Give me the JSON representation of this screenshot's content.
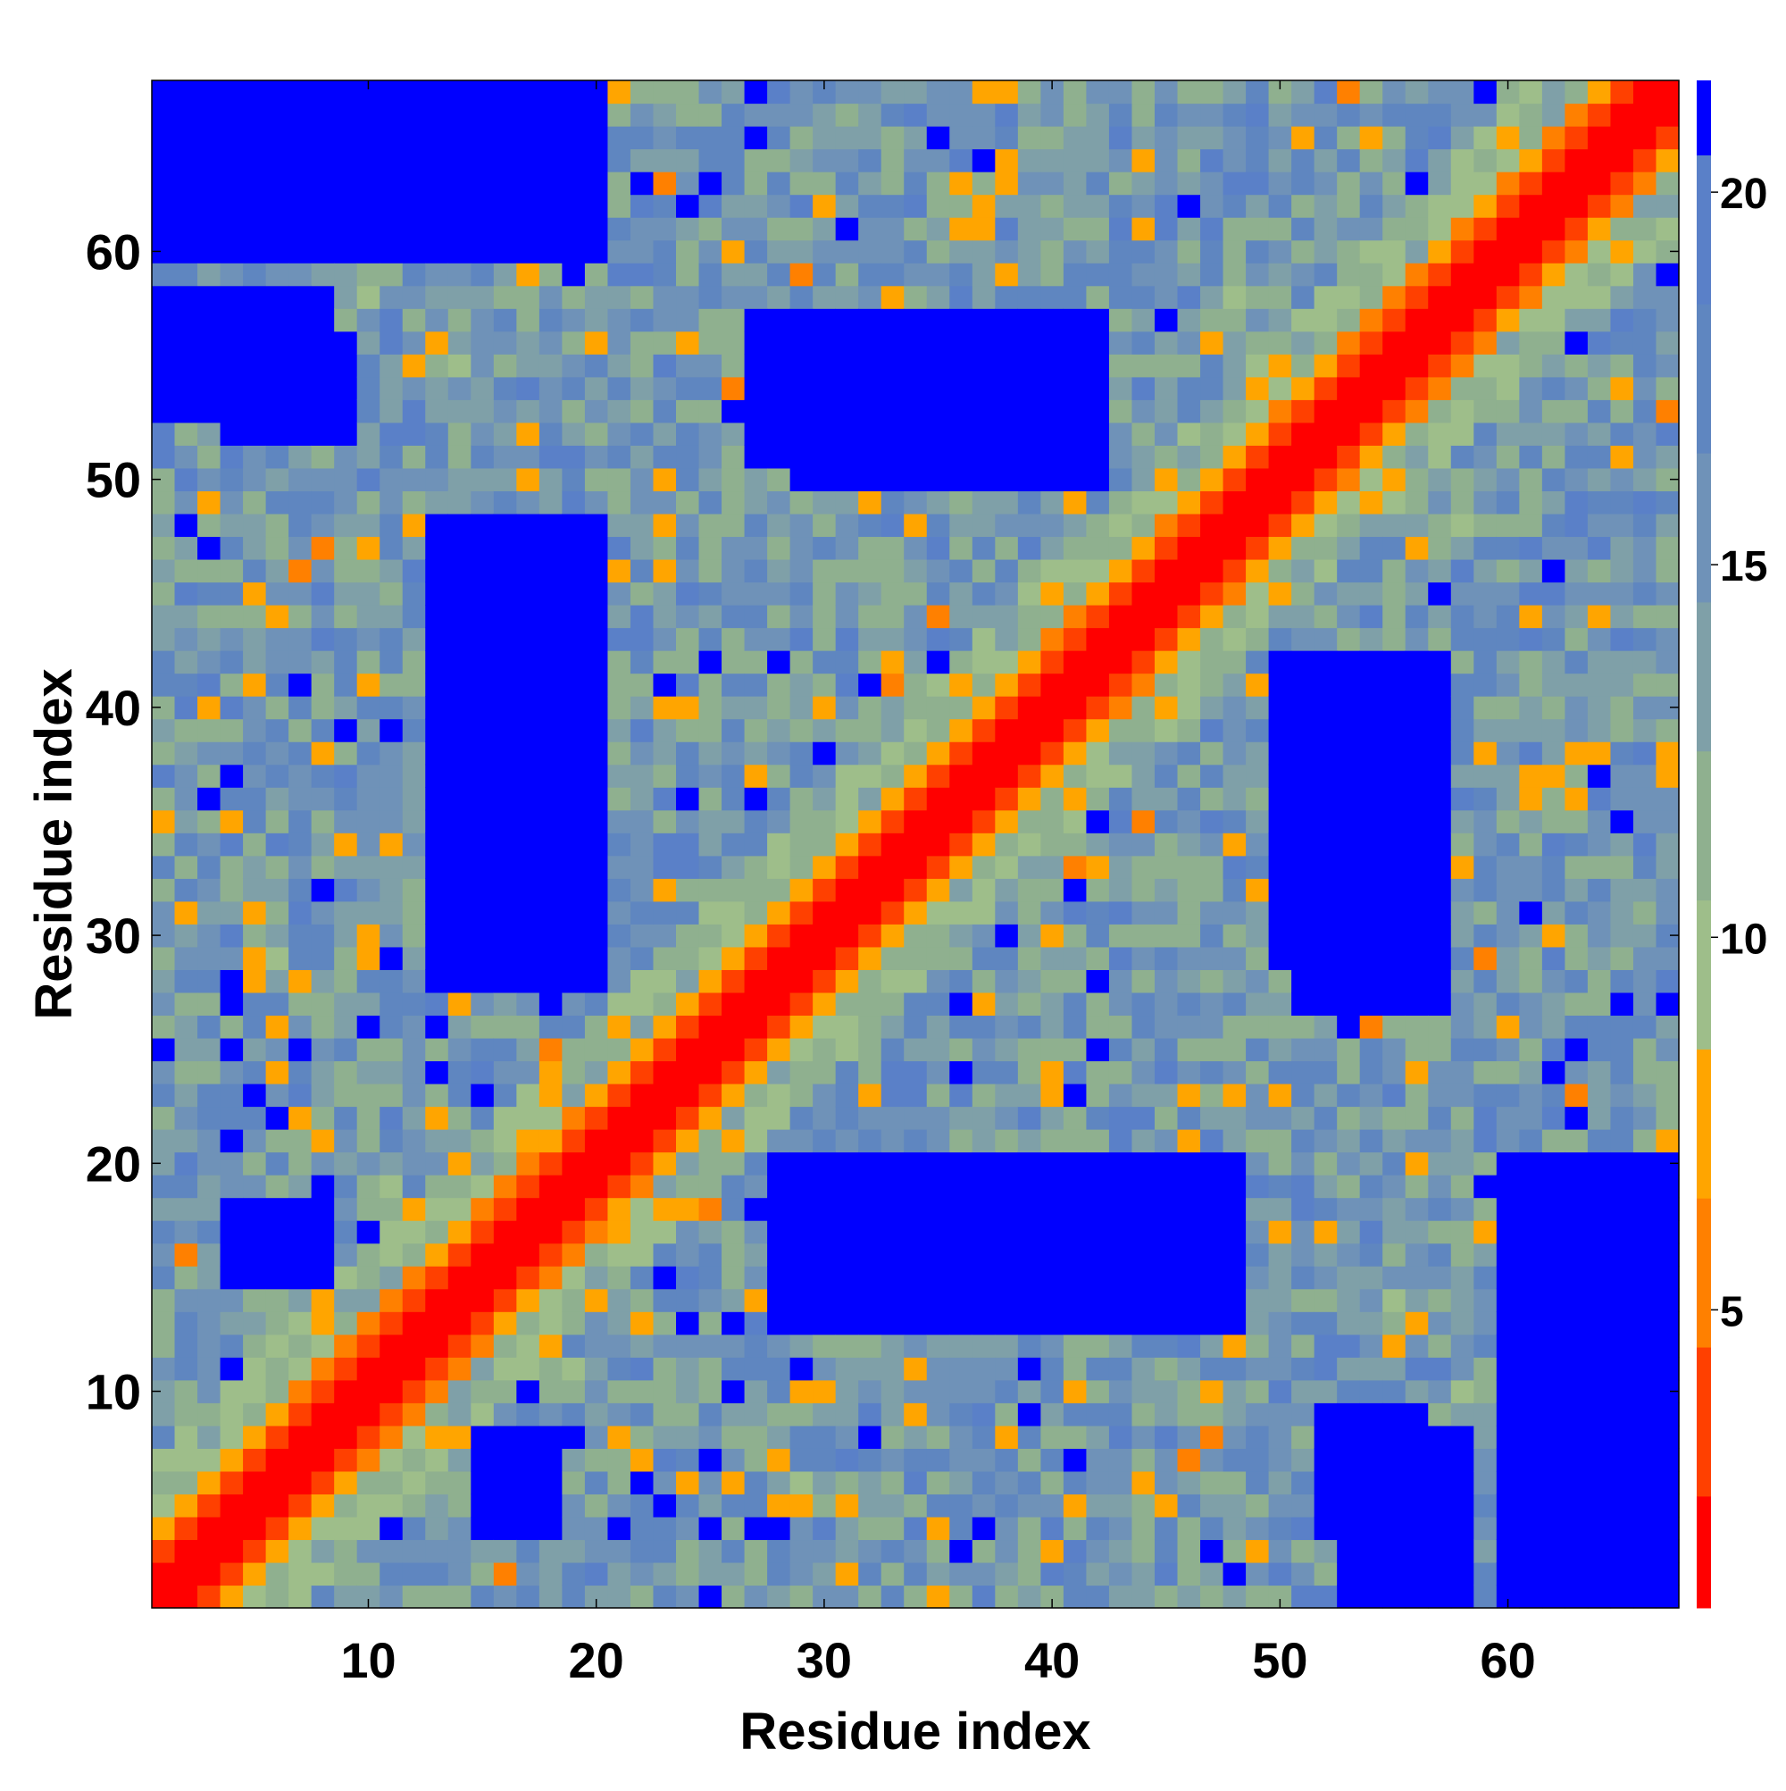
{
  "chart_data": {
    "type": "heatmap",
    "title": "",
    "xlabel": "Residue index",
    "ylabel": "Residue index",
    "n": 67,
    "xlim": [
      0.5,
      67.5
    ],
    "ylim": [
      0.5,
      67.5
    ],
    "x_ticks": [
      10,
      20,
      30,
      40,
      50,
      60
    ],
    "y_ticks": [
      10,
      20,
      30,
      40,
      50,
      60
    ],
    "colorbar": {
      "range": [
        1,
        21.5
      ],
      "ticks": [
        5,
        10,
        15,
        20
      ],
      "levels": [
        {
          "max": 2.5,
          "color": "#ff0000"
        },
        {
          "max": 4.5,
          "color": "#ff4000"
        },
        {
          "max": 6.5,
          "color": "#ff8000"
        },
        {
          "max": 8.5,
          "color": "#ffa500"
        },
        {
          "max": 10.5,
          "color": "#9ebe8a"
        },
        {
          "max": 12.5,
          "color": "#8fb08f"
        },
        {
          "max": 14.5,
          "color": "#7fa0a8"
        },
        {
          "max": 16.5,
          "color": "#6f92b8"
        },
        {
          "max": 18.5,
          "color": "#5f86c0"
        },
        {
          "max": 20.5,
          "color": "#5a80c8"
        },
        {
          "max": 21.5,
          "color": "#0000ff"
        }
      ]
    },
    "value_description": "Symmetric contact distance map; values follow the visible pattern",
    "diagonal_band": {
      "value_at_0": 1,
      "value_at_1": 3.5,
      "value_at_2": 6
    },
    "far_blocks": [
      {
        "i": [
          13,
          20
        ],
        "j": [
          28,
          48
        ],
        "value": 21
      },
      {
        "i": [
          28,
          38
        ],
        "j": [
          14,
          20
        ],
        "value": 21
      },
      {
        "i": [
          50,
          57
        ],
        "j": [
          29,
          42
        ],
        "value": 21
      },
      {
        "i": [
          1,
          8
        ],
        "j": [
          53,
          58
        ],
        "value": 21
      },
      {
        "i": [
          27,
          40
        ],
        "j": [
          51,
          57
        ],
        "value": 21
      },
      {
        "i": [
          60,
          67
        ],
        "j": [
          1,
          20
        ],
        "value": 21
      },
      {
        "i": [
          61,
          67
        ],
        "j": [
          14,
          20
        ],
        "value": 21
      },
      {
        "i": [
          52,
          56
        ],
        "j": [
          4,
          9
        ],
        "value": 21
      },
      {
        "i": [
          33,
          38
        ],
        "j": [
          15,
          20
        ],
        "value": 21
      },
      {
        "i": [
          4,
          8
        ],
        "j": [
          15,
          18
        ],
        "value": 21
      },
      {
        "i": [
          1,
          6
        ],
        "j": [
          64,
          67
        ],
        "value": 21
      },
      {
        "i": [
          13,
          20
        ],
        "j": [
          62,
          67
        ],
        "value": 21
      }
    ]
  }
}
